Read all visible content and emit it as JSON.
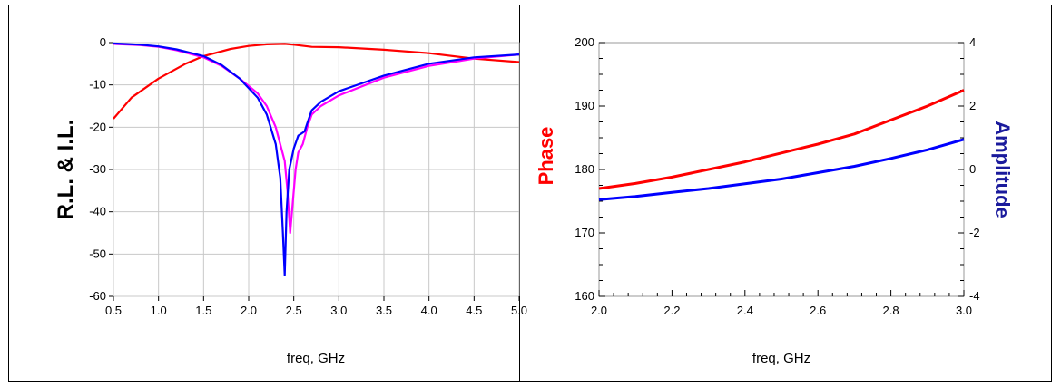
{
  "chart_data": [
    {
      "type": "line",
      "xlabel": "freq, GHz",
      "ylabel": "R.L. & I.L.",
      "xlim": [
        0.5,
        5.0
      ],
      "ylim": [
        -60,
        0
      ],
      "grid": true,
      "x_tick_labels": [
        "0.5",
        "1.0",
        "1.5",
        "2.0",
        "2.5",
        "3.0",
        "3.5",
        "4.0",
        "4.5",
        "5.0"
      ],
      "y_tick_labels": [
        "0",
        "-10",
        "-20",
        "-30",
        "-40",
        "-50",
        "-60"
      ],
      "series": [
        {
          "color": "#ff0000",
          "x": [
            0.5,
            0.7,
            1.0,
            1.3,
            1.5,
            1.8,
            2.0,
            2.2,
            2.4,
            2.5,
            2.7,
            3.0,
            3.5,
            4.0,
            4.5,
            5.0
          ],
          "y": [
            -18,
            -13,
            -8.5,
            -5,
            -3.2,
            -1.5,
            -0.8,
            -0.4,
            -0.3,
            -0.5,
            -1,
            -1.1,
            -1.7,
            -2.5,
            -3.8,
            -4.6
          ]
        },
        {
          "color": "#ff00ff",
          "x": [
            0.5,
            0.8,
            1.0,
            1.2,
            1.5,
            1.7,
            1.9,
            2.1,
            2.2,
            2.3,
            2.4,
            2.43,
            2.46,
            2.48,
            2.52,
            2.55,
            2.6,
            2.65,
            2.7,
            2.8,
            3.0,
            3.5,
            4.0,
            4.5,
            5.0
          ],
          "y": [
            -0.3,
            -0.6,
            -1,
            -1.8,
            -3.5,
            -5.5,
            -8.5,
            -12,
            -15,
            -20,
            -28,
            -35,
            -45,
            -40,
            -30,
            -26,
            -24,
            -20,
            -17,
            -15,
            -12.5,
            -8.3,
            -5.5,
            -3.8,
            -2.8
          ]
        },
        {
          "color": "#0000ff",
          "x": [
            0.5,
            0.8,
            1.0,
            1.2,
            1.5,
            1.7,
            1.9,
            2.1,
            2.2,
            2.3,
            2.35,
            2.38,
            2.4,
            2.42,
            2.45,
            2.5,
            2.55,
            2.62,
            2.65,
            2.7,
            2.8,
            3.0,
            3.5,
            4.0,
            4.5,
            5.0
          ],
          "y": [
            -0.2,
            -0.5,
            -0.9,
            -1.6,
            -3.2,
            -5.3,
            -8.5,
            -13,
            -17,
            -24,
            -32,
            -45,
            -55,
            -40,
            -30,
            -25,
            -22,
            -21,
            -19,
            -16,
            -14,
            -11.5,
            -7.8,
            -5,
            -3.5,
            -2.8
          ]
        }
      ]
    },
    {
      "type": "line",
      "xlabel": "freq, GHz",
      "ylabel": "Phase",
      "ylabel_right": "Amplitude",
      "xlim": [
        2.0,
        3.0
      ],
      "ylim": [
        160,
        200
      ],
      "ylim_right": [
        -4,
        4
      ],
      "grid": false,
      "x_tick_labels": [
        "2.0",
        "2.2",
        "2.4",
        "2.6",
        "2.8",
        "3.0"
      ],
      "y_tick_labels": [
        "200",
        "190",
        "180",
        "170",
        "160"
      ],
      "y_right_tick_labels": [
        "4",
        "2",
        "0",
        "-2",
        "-4"
      ],
      "series": [
        {
          "color": "#ff0000",
          "axis": "left",
          "x": [
            2.0,
            2.1,
            2.2,
            2.3,
            2.4,
            2.5,
            2.6,
            2.7,
            2.8,
            2.9,
            3.0
          ],
          "y": [
            177.0,
            177.8,
            178.8,
            180.0,
            181.2,
            182.6,
            184.0,
            185.6,
            187.8,
            190.0,
            192.5
          ]
        },
        {
          "color": "#0000ff",
          "axis": "right",
          "x": [
            2.0,
            2.1,
            2.2,
            2.3,
            2.4,
            2.5,
            2.6,
            2.7,
            2.8,
            2.9,
            3.0
          ],
          "y": [
            -0.95,
            -0.85,
            -0.72,
            -0.6,
            -0.45,
            -0.3,
            -0.1,
            0.1,
            0.35,
            0.62,
            0.95
          ]
        }
      ]
    }
  ]
}
